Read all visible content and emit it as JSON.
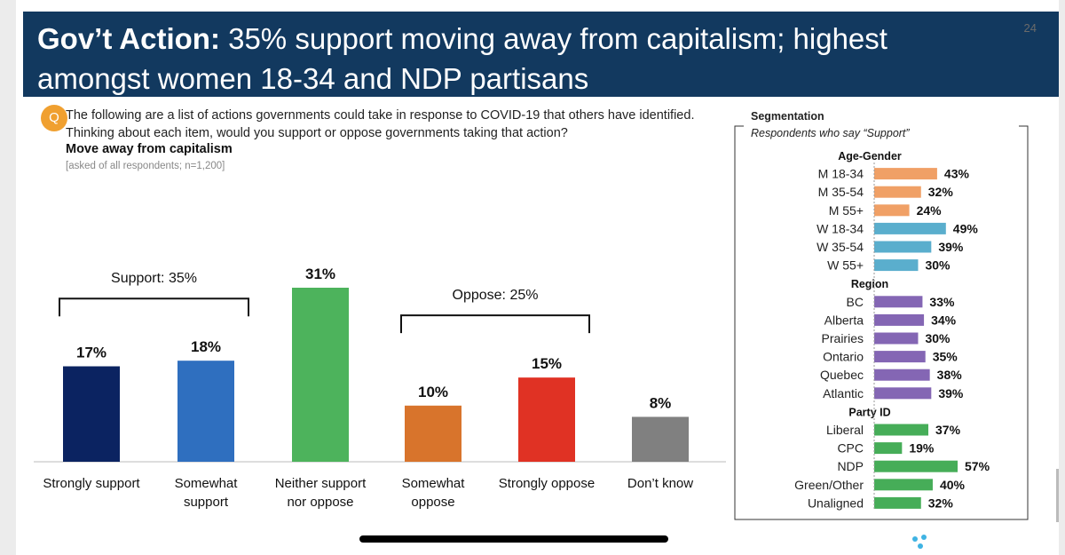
{
  "page_number": "24",
  "title": {
    "bold": "Gov’t Action:",
    "rest": " 35% support moving away from capitalism; highest amongst women 18-34 and NDP partisans"
  },
  "question": {
    "badge": "Q",
    "text": "The following are a list of actions governments could take in response to COVID-19 that others have identified. Thinking about each item, would you support or oppose governments taking that action?",
    "subtitle": "Move away from capitalism",
    "footnote": "[asked of all respondents; n=1,200]"
  },
  "colors": {
    "title_bg": "#12395f",
    "badge": "#f0a030",
    "strongly_support": "#0b2361",
    "somewhat_support": "#2f6fbf",
    "neither": "#4db35c",
    "somewhat_oppose": "#d8742c",
    "strongly_oppose": "#e03224",
    "dont_know": "#808080",
    "seg_age_men": "#f0a066",
    "seg_age_women": "#5aaecd",
    "seg_region": "#8466b4",
    "seg_party": "#46ad58"
  },
  "chart_data": [
    {
      "type": "bar",
      "title": "Move away from capitalism",
      "unit": "%",
      "categories": [
        "Strongly support",
        "Somewhat support",
        "Neither support nor oppose",
        "Somewhat oppose",
        "Strongly oppose",
        "Don’t know"
      ],
      "category_lines": [
        [
          "Strongly support"
        ],
        [
          "Somewhat",
          "support"
        ],
        [
          "Neither support",
          "nor oppose"
        ],
        [
          "Somewhat",
          "oppose"
        ],
        [
          "Strongly oppose"
        ],
        [
          "Don’t know"
        ]
      ],
      "values": [
        17,
        18,
        31,
        10,
        15,
        8
      ],
      "color_keys": [
        "strongly_support",
        "somewhat_support",
        "neither",
        "somewhat_oppose",
        "strongly_oppose",
        "dont_know"
      ],
      "ylim": [
        0,
        31
      ],
      "groups": [
        {
          "label": "Support: 35%",
          "value": 35,
          "from": 0,
          "to": 1
        },
        {
          "label": "Oppose: 25%",
          "value": 25,
          "from": 3,
          "to": 4
        }
      ]
    },
    {
      "type": "bar",
      "orientation": "horizontal",
      "title": "Segmentation",
      "subtitle": "Respondents who say “Support”",
      "unit": "%",
      "xlim": [
        0,
        57
      ],
      "groups": [
        {
          "label": "Age-Gender",
          "items": [
            {
              "label": "M 18-34",
              "value": 43,
              "color_key": "seg_age_men"
            },
            {
              "label": "M 35-54",
              "value": 32,
              "color_key": "seg_age_men"
            },
            {
              "label": "M 55+",
              "value": 24,
              "color_key": "seg_age_men"
            },
            {
              "label": "W 18-34",
              "value": 49,
              "color_key": "seg_age_women"
            },
            {
              "label": "W 35-54",
              "value": 39,
              "color_key": "seg_age_women"
            },
            {
              "label": "W 55+",
              "value": 30,
              "color_key": "seg_age_women"
            }
          ]
        },
        {
          "label": "Region",
          "items": [
            {
              "label": "BC",
              "value": 33,
              "color_key": "seg_region"
            },
            {
              "label": "Alberta",
              "value": 34,
              "color_key": "seg_region"
            },
            {
              "label": "Prairies",
              "value": 30,
              "color_key": "seg_region"
            },
            {
              "label": "Ontario",
              "value": 35,
              "color_key": "seg_region"
            },
            {
              "label": "Quebec",
              "value": 38,
              "color_key": "seg_region"
            },
            {
              "label": "Atlantic",
              "value": 39,
              "color_key": "seg_region"
            }
          ]
        },
        {
          "label": "Party ID",
          "items": [
            {
              "label": "Liberal",
              "value": 37,
              "color_key": "seg_party"
            },
            {
              "label": "CPC",
              "value": 19,
              "color_key": "seg_party"
            },
            {
              "label": "NDP",
              "value": 57,
              "color_key": "seg_party"
            },
            {
              "label": "Green/Other",
              "value": 40,
              "color_key": "seg_party"
            },
            {
              "label": "Unaligned",
              "value": 32,
              "color_key": "seg_party"
            }
          ]
        }
      ]
    }
  ]
}
